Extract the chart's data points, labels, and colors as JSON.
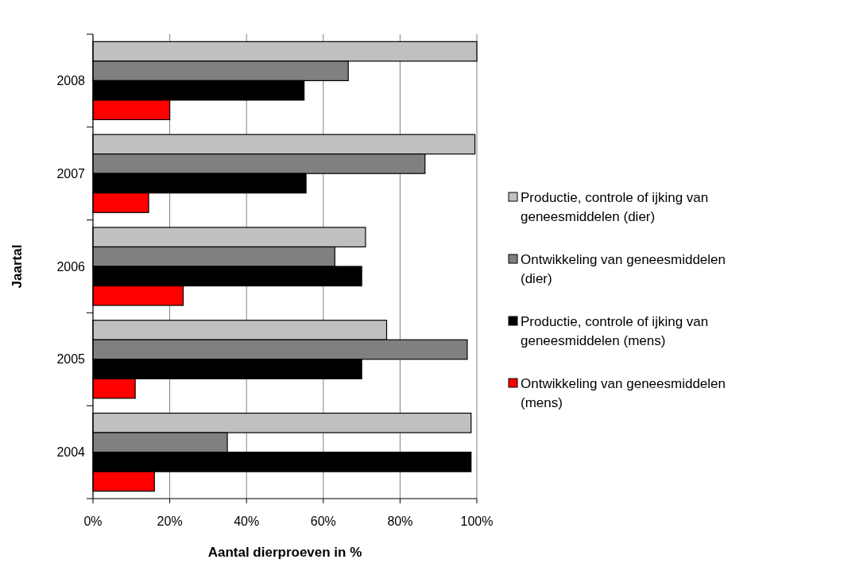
{
  "chart_data": {
    "type": "bar",
    "orientation": "horizontal",
    "xlabel": "Aantal dierproeven in %",
    "ylabel": "Jaartal",
    "categories": [
      "2008",
      "2007",
      "2006",
      "2005",
      "2004"
    ],
    "series": [
      {
        "name": "Productie, controle of ijking van geneesmiddelen (dier)",
        "color": "#c0c0c0",
        "values": [
          100,
          99.5,
          71,
          76.5,
          98.5
        ]
      },
      {
        "name": "Ontwikkeling van geneesmiddelen (dier)",
        "color": "#808080",
        "values": [
          66.5,
          86.5,
          63,
          97.5,
          35
        ]
      },
      {
        "name": "Productie, controle of ijking van geneesmiddelen (mens)",
        "color": "#000000",
        "values": [
          55,
          55.5,
          70,
          70,
          98.5
        ]
      },
      {
        "name": "Ontwikkeling van geneesmiddelen (mens)",
        "color": "#ff0000",
        "values": [
          20,
          14.5,
          23.5,
          11,
          16
        ]
      }
    ],
    "xlim": [
      0,
      100
    ],
    "xticks": [
      {
        "value": 0,
        "label": "0%"
      },
      {
        "value": 20,
        "label": "20%"
      },
      {
        "value": 40,
        "label": "40%"
      },
      {
        "value": 60,
        "label": "60%"
      },
      {
        "value": 80,
        "label": "80%"
      },
      {
        "value": 100,
        "label": "100%"
      }
    ],
    "grid": "x",
    "legend": "right"
  }
}
